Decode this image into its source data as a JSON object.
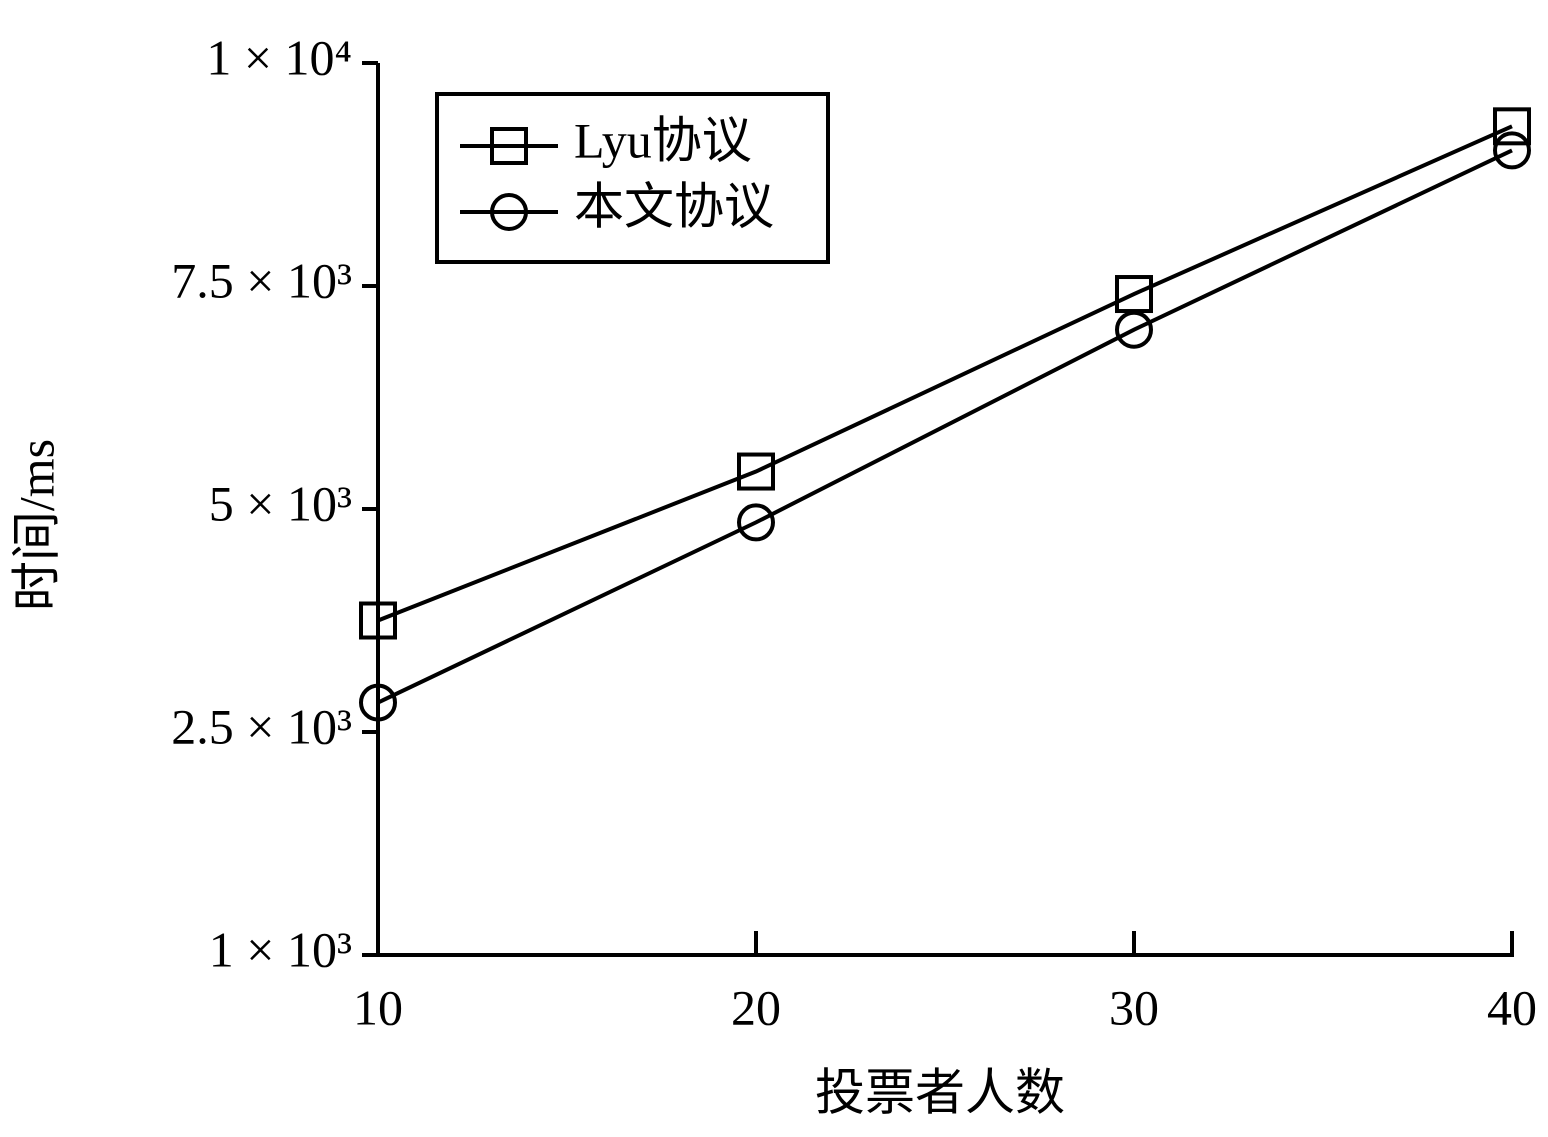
{
  "chart_data": {
    "type": "line",
    "x_label": "投票者人数",
    "y_label": "时间/ms",
    "x": [
      10,
      20,
      30,
      40
    ],
    "xlim": [
      10,
      40
    ],
    "xticks": [
      10,
      20,
      30,
      40
    ],
    "ylim": [
      1000,
      10000
    ],
    "yticks": [
      {
        "value": 1000,
        "label": "1 × 10³"
      },
      {
        "value": 2500,
        "label": "2.5 × 10³"
      },
      {
        "value": 5000,
        "label": "5 × 10³"
      },
      {
        "value": 7500,
        "label": "7.5 × 10³"
      },
      {
        "value": 10000,
        "label": "1 × 10⁴"
      }
    ],
    "legend": "upper left",
    "series": [
      {
        "name": "Lyu协议",
        "color": "#000000",
        "marker": "square",
        "values": [
          3750,
          5420,
          7410,
          9290
        ]
      },
      {
        "name": "本文协议",
        "color": "#000000",
        "marker": "circle",
        "values": [
          2830,
          4850,
          7010,
          9020
        ]
      }
    ]
  }
}
